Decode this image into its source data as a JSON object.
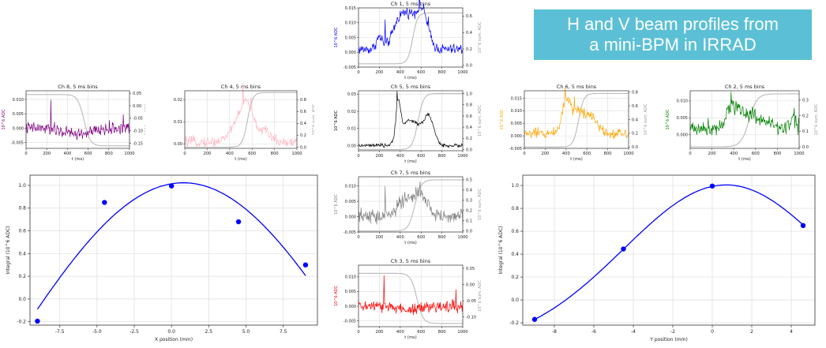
{
  "banner": {
    "line1": "H and V beam profiles from",
    "line2": "a mini-BPM in IRRAD"
  },
  "chart_data": [
    {
      "id": "ch1",
      "type": "line",
      "title": "Ch 1, 5 ms bins",
      "xlabel": "t (ms)",
      "ylabel": "10^6 ADC",
      "y2label": "10^6 sum. ADC",
      "color": "#0000ff",
      "xlim": [
        0,
        1000
      ],
      "ylim": [
        -0.005,
        0.015
      ],
      "y2lim": [
        -0.02,
        0.7
      ],
      "xticks": [
        0,
        200,
        400,
        600,
        800,
        1000
      ],
      "yticks": [
        "-0.005",
        "0.000",
        "0.005",
        "0.010",
        "0.015"
      ],
      "y2ticks": [
        "0.0",
        "0.2",
        "0.4",
        "0.6"
      ],
      "signal": {
        "base": 0.001,
        "noise": 0.0018,
        "bumps": [
          [
            200,
            0.004,
            30
          ],
          [
            380,
            0.006,
            60
          ],
          [
            500,
            0.011,
            90
          ],
          [
            620,
            0.009,
            50
          ]
        ],
        "spikes": [
          [
            255,
            0.008
          ],
          [
            585,
            0.004
          ],
          [
            670,
            0.003
          ]
        ]
      },
      "cumulative": {
        "start": 0.02,
        "end": 0.64,
        "mid": 520,
        "width": 70
      }
    },
    {
      "id": "ch8",
      "type": "line",
      "title": "Ch 8, 5 ms bins",
      "xlabel": "t (ms)",
      "ylabel": "10^6 ADC",
      "y2label": "10^6 sum. ADC",
      "color": "#800080",
      "xlim": [
        0,
        1000
      ],
      "ylim": [
        -0.007,
        0.013
      ],
      "y2lim": [
        -0.17,
        0.06
      ],
      "xticks": [
        0,
        200,
        400,
        600,
        800,
        1000
      ],
      "yticks": [
        "-0.005",
        "0.000",
        "0.005",
        "0.010"
      ],
      "y2ticks": [
        "-0.15",
        "-0.10",
        "-0.05",
        "0.00",
        "0.05"
      ],
      "signal": {
        "base": 0.0,
        "noise": 0.0022,
        "bumps": [
          [
            500,
            -0.002,
            150
          ]
        ],
        "spikes": [
          [
            240,
            0.011
          ],
          [
            940,
            0.006
          ]
        ]
      },
      "cumulative": {
        "start": 0.045,
        "end": -0.16,
        "mid": 560,
        "width": 90
      }
    },
    {
      "id": "ch4",
      "type": "line",
      "title": "Ch 4, 5 ms bins",
      "xlabel": "t (ms)",
      "ylabel": "10^6 ADC",
      "y2label": "10^6 sum. ADC",
      "color": "#ffb6c1",
      "xlim": [
        0,
        1000
      ],
      "ylim": [
        -0.002,
        0.024
      ],
      "y2lim": [
        -0.02,
        0.95
      ],
      "xticks": [
        0,
        200,
        400,
        600,
        800,
        1000
      ],
      "yticks": [
        "0.00",
        "0.01",
        "0.02"
      ],
      "y2ticks": [
        "0.0",
        "0.2",
        "0.4",
        "0.6",
        "0.8"
      ],
      "signal": {
        "base": 0.001,
        "noise": 0.0022,
        "bumps": [
          [
            480,
            0.009,
            70
          ],
          [
            560,
            0.013,
            50
          ],
          [
            700,
            0.005,
            60
          ]
        ],
        "spikes": [
          [
            520,
            0.008
          ],
          [
            590,
            0.006
          ]
        ]
      },
      "cumulative": {
        "start": 0.0,
        "end": 0.92,
        "mid": 560,
        "width": 70
      }
    },
    {
      "id": "ch5",
      "type": "line",
      "title": "Ch 5, 5 ms bins",
      "xlabel": "t (ms)",
      "ylabel": "10^6 ADC",
      "y2label": "10^6 sum. ADC",
      "color": "#000000",
      "xlim": [
        0,
        1000
      ],
      "ylim": [
        -0.003,
        0.032
      ],
      "y2lim": [
        -0.02,
        1.05
      ],
      "xticks": [
        0,
        200,
        400,
        600,
        800,
        1000
      ],
      "yticks": [
        "0.00",
        "0.01",
        "0.02",
        "0.03"
      ],
      "y2ticks": [
        "0.0",
        "0.2",
        "0.4",
        "0.6",
        "0.8",
        "1.0"
      ],
      "signal": {
        "base": 0.0,
        "noise": 0.0011,
        "bumps": [
          [
            380,
            0.022,
            22
          ],
          [
            450,
            0.009,
            60
          ],
          [
            560,
            0.011,
            80
          ],
          [
            680,
            0.014,
            45
          ]
        ],
        "spikes": [
          [
            372,
            0.008
          ]
        ]
      },
      "cumulative": {
        "start": 0.0,
        "end": 1.0,
        "mid": 570,
        "width": 80
      }
    },
    {
      "id": "ch6",
      "type": "line",
      "title": "Ch 6, 5 ms bins",
      "xlabel": "t (ms)",
      "ylabel": "10^6 ADC",
      "y2label": "10^6 sum. ADC",
      "color": "#ffa500",
      "xlim": [
        0,
        1000
      ],
      "ylim": [
        -0.005,
        0.018
      ],
      "y2lim": [
        -0.02,
        0.82
      ],
      "xticks": [
        0,
        200,
        400,
        600,
        800,
        1000
      ],
      "yticks": [
        "-0.005",
        "0.000",
        "0.005",
        "0.010",
        "0.015"
      ],
      "y2ticks": [
        "0.0",
        "0.2",
        "0.4",
        "0.6",
        "0.8"
      ],
      "signal": {
        "base": 0.001,
        "noise": 0.0022,
        "bumps": [
          [
            400,
            0.011,
            40
          ],
          [
            520,
            0.009,
            80
          ],
          [
            660,
            0.005,
            50
          ]
        ],
        "spikes": [
          [
            390,
            0.005
          ],
          [
            480,
            0.004
          ]
        ]
      },
      "cumulative": {
        "start": 0.0,
        "end": 0.78,
        "mid": 520,
        "width": 75
      }
    },
    {
      "id": "ch2",
      "type": "line",
      "title": "Ch 2, 5 ms bins",
      "xlabel": "t (ms)",
      "ylabel": "10^6 ADC",
      "y2label": "10^6 sum. ADC",
      "color": "#008000",
      "xlim": [
        0,
        1000
      ],
      "ylim": [
        -0.004,
        0.013
      ],
      "y2lim": [
        -0.01,
        0.36
      ],
      "xticks": [
        0,
        200,
        400,
        600,
        800,
        1000
      ],
      "yticks": [
        "0.000",
        "0.005",
        "0.010"
      ],
      "y2ticks": [
        "0.0",
        "0.1",
        "0.2",
        "0.3"
      ],
      "signal": {
        "base": 0.002,
        "noise": 0.0024,
        "bumps": [
          [
            390,
            0.005,
            60
          ],
          [
            550,
            0.004,
            120
          ],
          [
            940,
            0.003,
            25
          ]
        ],
        "spikes": [
          [
            375,
            0.004
          ],
          [
            955,
            0.003
          ]
        ]
      },
      "cumulative": {
        "start": 0.0,
        "end": 0.34,
        "mid": 540,
        "width": 110
      }
    },
    {
      "id": "ch7",
      "type": "line",
      "title": "Ch 7, 5 ms bins",
      "xlabel": "t (ms)",
      "ylabel": "10^6 ADC",
      "y2label": "10^6 sum. ADC",
      "color": "#808080",
      "xlim": [
        0,
        1000
      ],
      "ylim": [
        -0.005,
        0.013
      ],
      "y2lim": [
        -0.01,
        0.53
      ],
      "xticks": [
        0,
        200,
        400,
        600,
        800,
        1000
      ],
      "yticks": [
        "-0.005",
        "0.000",
        "0.005",
        "0.010"
      ],
      "y2ticks": [
        "0.0",
        "0.1",
        "0.2",
        "0.3",
        "0.4",
        "0.5"
      ],
      "signal": {
        "base": 0.0,
        "noise": 0.0025,
        "bumps": [
          [
            420,
            0.004,
            70
          ],
          [
            580,
            0.007,
            80
          ]
        ],
        "spikes": [
          [
            255,
            0.008
          ],
          [
            590,
            0.004
          ]
        ]
      },
      "cumulative": {
        "start": 0.0,
        "end": 0.5,
        "mid": 540,
        "width": 90
      }
    },
    {
      "id": "ch3",
      "type": "line",
      "title": "Ch 3, 5 ms bins",
      "xlabel": "t (ms)",
      "ylabel": "10^6 ADC",
      "y2label": "10^6 sum. ADC",
      "color": "#ff0000",
      "xlim": [
        0,
        1000
      ],
      "ylim": [
        -0.007,
        0.014
      ],
      "y2lim": [
        -0.13,
        0.06
      ],
      "xticks": [
        0,
        200,
        400,
        600,
        800,
        1000
      ],
      "yticks": [
        "-0.005",
        "0.000",
        "0.005",
        "0.010"
      ],
      "y2ticks": [
        "-0.10",
        "-0.05",
        "0.00",
        "0.05"
      ],
      "signal": {
        "base": 0.0,
        "noise": 0.0021,
        "bumps": [
          [
            500,
            -0.001,
            150
          ]
        ],
        "spikes": [
          [
            245,
            0.012
          ],
          [
            935,
            0.008
          ]
        ]
      },
      "cumulative": {
        "start": 0.035,
        "end": -0.12,
        "mid": 560,
        "width": 90
      }
    },
    {
      "id": "hprofile",
      "type": "scatter",
      "xlabel": "X position (mm)",
      "ylabel": "Integral (10^6 ADC)",
      "color": "#0000ff",
      "xlim": [
        -9.5,
        9.8
      ],
      "ylim": [
        -0.23,
        1.09
      ],
      "xticks": [
        "-7.5",
        "-5.0",
        "-2.5",
        "0.0",
        "2.5",
        "5.0",
        "7.5"
      ],
      "xtick_values": [
        -7.5,
        -5.0,
        -2.5,
        0.0,
        2.5,
        5.0,
        7.5
      ],
      "yticks": [
        "-0.2",
        "0.0",
        "0.2",
        "0.4",
        "0.6",
        "0.8",
        "1.0"
      ],
      "ytick_values": [
        -0.2,
        0.0,
        0.2,
        0.4,
        0.6,
        0.8,
        1.0
      ],
      "points": {
        "x": [
          -9.0,
          -4.5,
          0.0,
          4.5,
          9.0
        ],
        "y": [
          -0.195,
          0.85,
          0.995,
          0.68,
          0.3
        ]
      },
      "fit": "gaussian"
    },
    {
      "id": "vprofile",
      "type": "scatter",
      "xlabel": "Y position (mm)",
      "ylabel": "Integral (10^6 ADC)",
      "color": "#0000ff",
      "xlim": [
        -9.6,
        5.2
      ],
      "ylim": [
        -0.22,
        1.09
      ],
      "xticks": [
        "-8",
        "-6",
        "-4",
        "-2",
        "0",
        "2",
        "4"
      ],
      "xtick_values": [
        -8,
        -6,
        -4,
        -2,
        0,
        2,
        4
      ],
      "yticks": [
        "-0.2",
        "0.0",
        "0.2",
        "0.4",
        "0.6",
        "0.8",
        "1.0"
      ],
      "ytick_values": [
        -0.2,
        0.0,
        0.2,
        0.4,
        0.6,
        0.8,
        1.0
      ],
      "points": {
        "x": [
          -9.0,
          -4.5,
          0.0,
          4.6
        ],
        "y": [
          -0.17,
          0.445,
          0.995,
          0.65
        ]
      },
      "fit": "gaussian"
    }
  ]
}
